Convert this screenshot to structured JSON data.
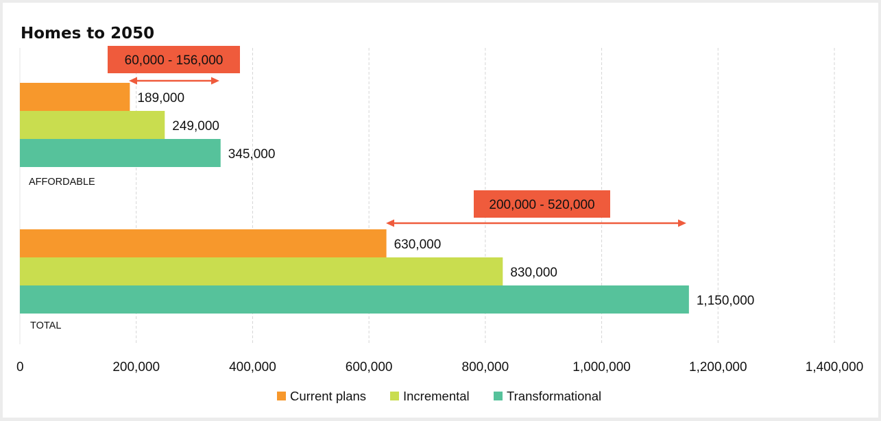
{
  "chart_data": {
    "type": "bar",
    "orientation": "horizontal",
    "title": "Homes to 2050",
    "categories": [
      "AFFORDABLE",
      "TOTAL"
    ],
    "series": [
      {
        "name": "Current plans",
        "values": [
          189000,
          630000
        ],
        "color": "#f7982c"
      },
      {
        "name": "Incremental",
        "values": [
          249000,
          830000
        ],
        "color": "#c9dd4f"
      },
      {
        "name": "Transformational",
        "values": [
          345000,
          1150000
        ],
        "color": "#56c29b"
      }
    ],
    "value_labels": [
      [
        "189,000",
        "630,000"
      ],
      [
        "249,000",
        "830,000"
      ],
      [
        "345,000",
        "1,150,000"
      ]
    ],
    "xlim": [
      0,
      1400000
    ],
    "x_ticks": [
      0,
      200000,
      400000,
      600000,
      800000,
      1000000,
      1200000,
      1400000
    ],
    "x_tick_labels": [
      "0",
      "200,000",
      "400,000",
      "600,000",
      "800,000",
      "1,000,000",
      "1,200,000",
      "1,400,000"
    ],
    "annotations": [
      {
        "label": "60,000 - 156,000",
        "from": 189000,
        "to": 345000,
        "category": "AFFORDABLE"
      },
      {
        "label": "200,000 - 520,000",
        "from": 630000,
        "to": 1150000,
        "category": "TOTAL"
      }
    ],
    "annotation_color": "#ef5b3c",
    "grid": "vertical-dashed",
    "legend_position": "bottom"
  }
}
